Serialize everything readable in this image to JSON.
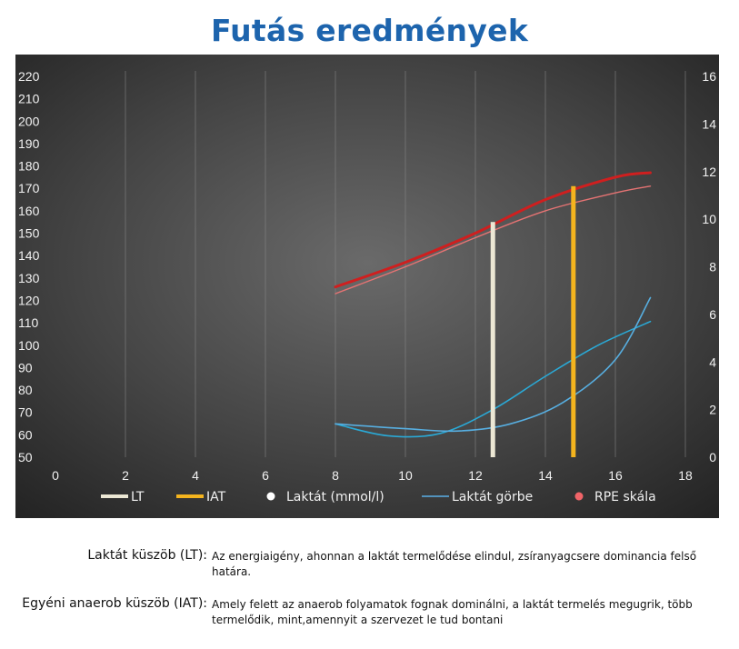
{
  "title": "Futás eredmények",
  "chart_data": {
    "type": "line",
    "grid": true,
    "background": "dark-radial",
    "x": {
      "min": 0,
      "max": 18,
      "ticks": [
        0,
        2,
        4,
        6,
        8,
        10,
        12,
        14,
        16,
        18
      ]
    },
    "y_left": {
      "min": 50,
      "max": 220,
      "ticks": [
        50,
        60,
        70,
        80,
        90,
        100,
        110,
        120,
        130,
        140,
        150,
        160,
        170,
        180,
        190,
        200,
        210,
        220
      ]
    },
    "y_right": {
      "min": 0,
      "max": 16,
      "ticks": [
        0,
        2,
        4,
        6,
        8,
        10,
        12,
        14,
        16
      ]
    },
    "series": [
      {
        "name": "Laktát (mmol/l)",
        "axis": "right",
        "color": "#2aa9d6",
        "smooth": true,
        "points": [
          [
            8,
            1.4
          ],
          [
            9.5,
            0.9
          ],
          [
            11,
            1.0
          ],
          [
            12.5,
            2.0
          ],
          [
            14,
            3.4
          ],
          [
            15.5,
            4.7
          ],
          [
            17,
            5.7
          ]
        ]
      },
      {
        "name": "Laktát görbe",
        "axis": "right",
        "color": "#57aee0",
        "smooth": true,
        "points": [
          [
            8,
            1.4
          ],
          [
            10,
            1.2
          ],
          [
            11.5,
            1.1
          ],
          [
            13,
            1.4
          ],
          [
            14.5,
            2.3
          ],
          [
            16,
            4.1
          ],
          [
            17,
            6.7
          ]
        ]
      },
      {
        "name": "RPE skála",
        "axis": "left",
        "color": "#cf1f1f",
        "width": 3,
        "smooth": true,
        "points": [
          [
            8,
            126
          ],
          [
            10,
            137
          ],
          [
            12,
            150
          ],
          [
            14,
            165
          ],
          [
            16,
            175
          ],
          [
            17,
            177
          ]
        ]
      },
      {
        "name": "",
        "axis": "left",
        "color": "#e57373",
        "width": 1.4,
        "smooth": true,
        "points": [
          [
            8,
            123
          ],
          [
            10,
            135
          ],
          [
            12,
            148
          ],
          [
            14,
            160
          ],
          [
            16,
            168
          ],
          [
            17,
            171
          ]
        ]
      }
    ],
    "markers": [
      {
        "name": "LT",
        "x": 12.5,
        "y_top": 155,
        "color": "#ece7d4"
      },
      {
        "name": "IAT",
        "x": 14.8,
        "y_top": 171,
        "color": "#f4b41e"
      }
    ],
    "legend": [
      {
        "label": "LT",
        "kind": "line",
        "color": "#ece7d4"
      },
      {
        "label": "IAT",
        "kind": "line",
        "color": "#f4b41e"
      },
      {
        "label": "Laktát (mmol/l)",
        "kind": "dot",
        "color": "#ffffff"
      },
      {
        "label": "Laktát görbe",
        "kind": "thin",
        "color": "#5ab0e8"
      },
      {
        "label": "RPE skála",
        "kind": "dot",
        "color": "#f06468"
      }
    ],
    "legend_position": "bottom"
  },
  "notes": [
    {
      "label": "Laktát küszöb (LT):",
      "lines": [
        " Az energiaigény, ahonnan a laktát termelődése elindul, zsíranyagcsere dominancia felső",
        "határa."
      ]
    },
    {
      "label": "Egyéni anaerob küszöb (IAT):",
      "lines": [
        "Amely felett az anaerob folyamatok fognak dominálni, a laktát termelés megugrik, több",
        "termelődik, mint,amennyit a szervezet le tud bontani"
      ]
    }
  ]
}
